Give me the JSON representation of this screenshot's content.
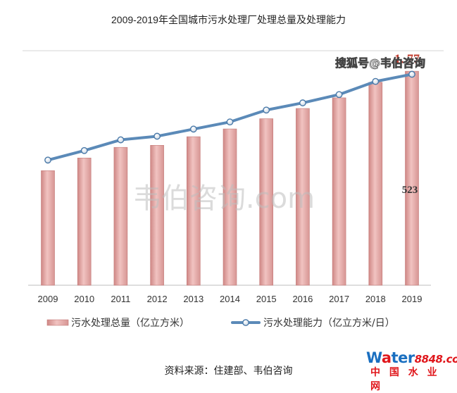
{
  "chart_data": {
    "type": "bar",
    "title": "2009-2019年全国城市污水处理厂处理总量及处理能力",
    "categories": [
      "2009",
      "2010",
      "2011",
      "2012",
      "2013",
      "2014",
      "2015",
      "2016",
      "2017",
      "2018",
      "2019"
    ],
    "series": [
      {
        "name": "污水处理总量（亿立方米）",
        "type": "bar",
        "values": [
          280,
          311,
          337,
          342,
          363,
          382,
          407,
          432,
          458,
          496,
          523
        ],
        "color": "#e3a5a4"
      },
      {
        "name": "污水处理能力（亿立方米/日）",
        "type": "line",
        "values": [
          1.05,
          1.13,
          1.22,
          1.25,
          1.31,
          1.37,
          1.47,
          1.53,
          1.6,
          1.71,
          1.77
        ],
        "color": "#5b8ab8"
      }
    ],
    "data_labels": {
      "last_bar": "523",
      "last_point": "1. 77"
    },
    "ylim_bar": [
      0,
      568
    ],
    "ylim_line": [
      0,
      1.95
    ],
    "grid": false,
    "legend_position": "bottom"
  },
  "watermarks": {
    "center": "韦伯咨询.com",
    "top_right": "搜狐号@韦伯咨询"
  },
  "source_note": "资料来源：住建部、韦伯咨询",
  "logo": {
    "brand_text_parts": [
      "W",
      "a",
      "ter",
      "8848",
      ".com"
    ],
    "subtitle": "中 国 水 业 网"
  }
}
